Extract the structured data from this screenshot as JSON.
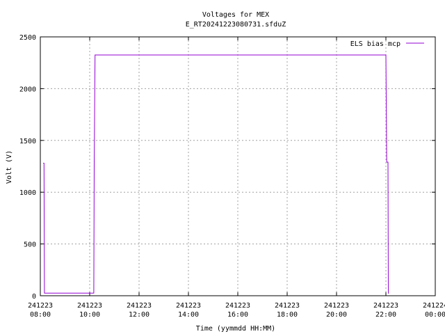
{
  "chart_data": {
    "type": "line",
    "title": "Voltages for MEX",
    "subtitle": "E_RT20241223080731.sfduZ",
    "xlabel": "Time (yymmdd HH:MM)",
    "ylabel": "Volt (V)",
    "ylim": [
      0,
      2500
    ],
    "yticks": [
      0,
      500,
      1000,
      1500,
      2000,
      2500
    ],
    "xlim": [
      "2024-12-23 08:00",
      "2024-12-24 00:00"
    ],
    "xticks": [
      {
        "x": "2024-12-23 08:00",
        "line1": "241223",
        "line2": "08:00"
      },
      {
        "x": "2024-12-23 10:00",
        "line1": "241223",
        "line2": "10:00"
      },
      {
        "x": "2024-12-23 12:00",
        "line1": "241223",
        "line2": "12:00"
      },
      {
        "x": "2024-12-23 14:00",
        "line1": "241223",
        "line2": "14:00"
      },
      {
        "x": "2024-12-23 16:00",
        "line1": "241223",
        "line2": "16:00"
      },
      {
        "x": "2024-12-23 18:00",
        "line1": "241223",
        "line2": "18:00"
      },
      {
        "x": "2024-12-23 20:00",
        "line1": "241223",
        "line2": "20:00"
      },
      {
        "x": "2024-12-23 22:00",
        "line1": "241223",
        "line2": "22:00"
      },
      {
        "x": "2024-12-24 00:00",
        "line1": "241224",
        "line2": "00:00"
      }
    ],
    "grid": true,
    "legend_position": "top-right",
    "series": [
      {
        "name": "ELS bias mcp",
        "color": "#9400d3",
        "points": [
          [
            "2024-12-23 08:07",
            1280
          ],
          [
            "2024-12-23 08:09",
            1280
          ],
          [
            "2024-12-23 08:10",
            25
          ],
          [
            "2024-12-23 10:10",
            25
          ],
          [
            "2024-12-23 10:11",
            1280
          ],
          [
            "2024-12-23 10:13",
            2325
          ],
          [
            "2024-12-23 22:00",
            2325
          ],
          [
            "2024-12-23 22:02",
            1290
          ],
          [
            "2024-12-23 22:05",
            1290
          ],
          [
            "2024-12-23 22:06",
            20
          ]
        ]
      }
    ]
  }
}
